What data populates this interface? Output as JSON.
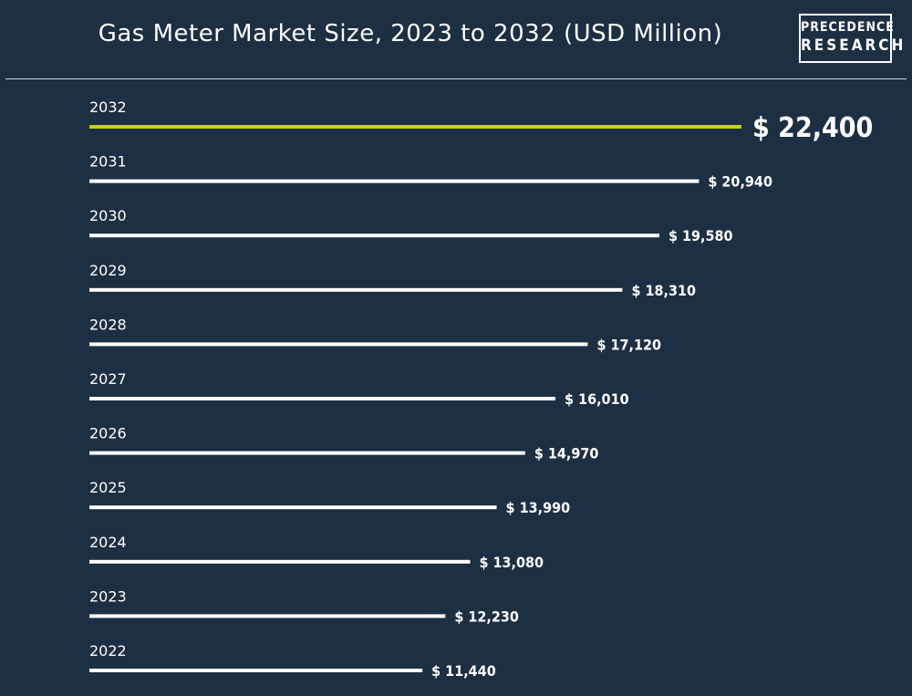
{
  "header": {
    "title": "Gas Meter Market Size, 2023 to 2032 (USD Million)",
    "logo_line1": "PRECEDENCE",
    "logo_line2": "RESEARCH"
  },
  "colors": {
    "background": "#1d2f43",
    "bar": "#ffffff",
    "highlight": "#c8d400"
  },
  "chart_data": {
    "type": "bar",
    "orientation": "horizontal",
    "title": "Gas Meter Market Size, 2023 to 2032 (USD Million)",
    "categories": [
      "2032",
      "2031",
      "2030",
      "2029",
      "2028",
      "2027",
      "2026",
      "2025",
      "2024",
      "2023",
      "2022"
    ],
    "values": [
      22400,
      20940,
      19580,
      18310,
      17120,
      16010,
      14970,
      13990,
      13080,
      12230,
      11440
    ],
    "value_labels": [
      "$ 22,400",
      "$ 20,940",
      "$ 19,580",
      "$ 18,310",
      "$ 17,120",
      "$ 16,010",
      "$ 14,970",
      "$ 13,990",
      "$ 13,080",
      "$ 12,230",
      "$ 11,440"
    ],
    "highlight_category": "2032",
    "xlim": [
      0,
      22400
    ],
    "grid": false,
    "legend": "none"
  }
}
